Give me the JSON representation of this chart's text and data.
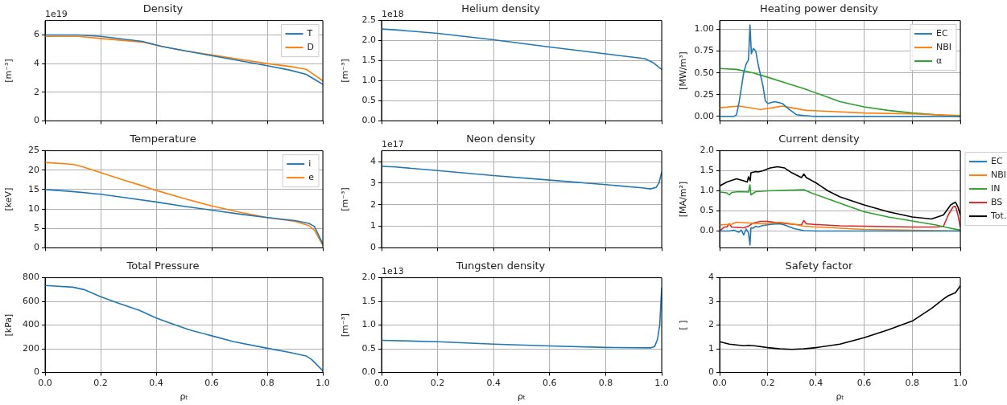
{
  "chart_data": [
    {
      "type": "line",
      "title": "Density",
      "ylabel": "[m⁻³]",
      "annotations": [
        "1e19"
      ],
      "xlim": [
        0,
        1
      ],
      "xticks": [
        {
          "value": 0,
          "label": null
        },
        {
          "value": 0.2,
          "label": null
        },
        {
          "value": 0.4,
          "label": null
        },
        {
          "value": 0.6,
          "label": null
        },
        {
          "value": 0.8,
          "label": null
        },
        {
          "value": 1,
          "label": null
        }
      ],
      "ylim": [
        0,
        7
      ],
      "yticks": [
        0,
        2,
        4,
        6
      ],
      "grid": true,
      "legend": "top right",
      "tick_labels": "y",
      "series": [
        {
          "name": "T",
          "color": "#1f77b4",
          "x": [
            0,
            0.12,
            0.2,
            0.35,
            0.42,
            0.5,
            0.6,
            0.7,
            0.8,
            0.88,
            0.94,
            0.97,
            1.0
          ],
          "values": [
            6.0,
            6.0,
            5.9,
            5.55,
            5.2,
            4.9,
            4.55,
            4.2,
            3.85,
            3.55,
            3.25,
            2.9,
            2.55
          ]
        },
        {
          "name": "D",
          "color": "#ff7f0e",
          "x": [
            0,
            0.12,
            0.2,
            0.35,
            0.42,
            0.5,
            0.6,
            0.7,
            0.8,
            0.88,
            0.94,
            0.97,
            1.0
          ],
          "values": [
            5.9,
            5.9,
            5.75,
            5.5,
            5.2,
            4.9,
            4.6,
            4.3,
            4.0,
            3.8,
            3.6,
            3.2,
            2.8
          ]
        }
      ]
    },
    {
      "type": "line",
      "title": "Helium density",
      "ylabel": "[m⁻³]",
      "annotations": [
        "1e18"
      ],
      "xlim": [
        0,
        1
      ],
      "xticks": [
        {
          "value": 0,
          "label": null
        },
        {
          "value": 0.2,
          "label": null
        },
        {
          "value": 0.4,
          "label": null
        },
        {
          "value": 0.6,
          "label": null
        },
        {
          "value": 0.8,
          "label": null
        },
        {
          "value": 1,
          "label": null
        }
      ],
      "ylim": [
        0,
        2.5
      ],
      "yticks": [
        {
          "value": 0,
          "label": "0.0"
        },
        0.5,
        {
          "value": 1,
          "label": "1.0"
        },
        1.5,
        {
          "value": 2,
          "label": "2.0"
        },
        2.5
      ],
      "grid": true,
      "tick_labels": "y",
      "series": [
        {
          "color": "#1f77b4",
          "x": [
            0,
            0.05,
            0.2,
            0.4,
            0.6,
            0.8,
            0.94,
            0.97,
            1.0
          ],
          "values": [
            2.29,
            2.27,
            2.18,
            2.02,
            1.84,
            1.67,
            1.55,
            1.45,
            1.28
          ]
        }
      ]
    },
    {
      "type": "line",
      "title": "Heating power density",
      "ylabel": "[MW/m³]",
      "xlim": [
        0,
        1
      ],
      "xticks": [
        {
          "value": 0,
          "label": null
        },
        {
          "value": 0.2,
          "label": null
        },
        {
          "value": 0.4,
          "label": null
        },
        {
          "value": 0.6,
          "label": null
        },
        {
          "value": 0.8,
          "label": null
        },
        {
          "value": 1,
          "label": null
        }
      ],
      "ylim": [
        -0.05,
        1.1
      ],
      "yticks": [
        {
          "value": 0,
          "label": "0.00"
        },
        {
          "value": 0.25,
          "label": "0.25"
        },
        {
          "value": 0.5,
          "label": "0.50"
        },
        {
          "value": 0.75,
          "label": "0.75"
        },
        {
          "value": 1,
          "label": "1.00"
        }
      ],
      "grid": true,
      "legend": "top right",
      "tick_labels": "y",
      "series": [
        {
          "name": "EC",
          "color": "#1f77b4",
          "x": [
            0,
            0.06,
            0.07,
            0.08,
            0.1,
            0.11,
            0.12,
            0.126,
            0.132,
            0.14,
            0.15,
            0.16,
            0.18,
            0.19,
            0.2,
            0.23,
            0.26,
            0.29,
            0.32,
            0.35,
            0.4,
            1.0
          ],
          "values": [
            0,
            0,
            0.02,
            0.15,
            0.5,
            0.6,
            0.65,
            1.05,
            0.72,
            0.78,
            0.75,
            0.6,
            0.35,
            0.18,
            0.15,
            0.17,
            0.15,
            0.08,
            0.02,
            0.01,
            0,
            0
          ]
        },
        {
          "name": "NBI",
          "color": "#ff7f0e",
          "x": [
            0,
            0.08,
            0.15,
            0.17,
            0.22,
            0.26,
            0.3,
            0.36,
            0.45,
            0.6,
            0.8,
            1.0
          ],
          "values": [
            0.1,
            0.12,
            0.09,
            0.08,
            0.1,
            0.12,
            0.1,
            0.07,
            0.06,
            0.04,
            0.03,
            0.01
          ]
        },
        {
          "name": "α",
          "color": "#2ca02c",
          "x": [
            0,
            0.07,
            0.14,
            0.2,
            0.28,
            0.35,
            0.42,
            0.5,
            0.6,
            0.7,
            0.8,
            0.9,
            1.0
          ],
          "values": [
            0.55,
            0.54,
            0.5,
            0.45,
            0.38,
            0.32,
            0.25,
            0.17,
            0.11,
            0.07,
            0.04,
            0.02,
            0
          ]
        }
      ]
    },
    {
      "type": "line",
      "title": "Temperature",
      "ylabel": "[keV]",
      "xlim": [
        0,
        1
      ],
      "xticks": [
        {
          "value": 0,
          "label": null
        },
        {
          "value": 0.2,
          "label": null
        },
        {
          "value": 0.4,
          "label": null
        },
        {
          "value": 0.6,
          "label": null
        },
        {
          "value": 0.8,
          "label": null
        },
        {
          "value": 1,
          "label": null
        }
      ],
      "ylim": [
        0,
        25
      ],
      "yticks": [
        0,
        5,
        10,
        15,
        20,
        25
      ],
      "grid": true,
      "legend": "top right",
      "tick_labels": "y",
      "series": [
        {
          "name": "i",
          "color": "#1f77b4",
          "x": [
            0,
            0.1,
            0.2,
            0.3,
            0.4,
            0.5,
            0.6,
            0.7,
            0.8,
            0.9,
            0.95,
            0.97,
            1.0
          ],
          "values": [
            15,
            14.5,
            13.8,
            12.8,
            11.8,
            10.7,
            9.7,
            8.7,
            7.8,
            7.0,
            6.3,
            5.5,
            1.0
          ]
        },
        {
          "name": "e",
          "color": "#ff7f0e",
          "x": [
            0,
            0.1,
            0.13,
            0.2,
            0.28,
            0.34,
            0.4,
            0.5,
            0.6,
            0.7,
            0.8,
            0.9,
            0.95,
            0.97,
            1.0
          ],
          "values": [
            22,
            21.5,
            21,
            19.4,
            17.5,
            16.2,
            14.8,
            12.7,
            10.8,
            9.2,
            7.8,
            6.8,
            5.7,
            4.5,
            0.7
          ]
        }
      ]
    },
    {
      "type": "line",
      "title": "Neon density",
      "ylabel": "[m⁻³]",
      "annotations": [
        "1e17"
      ],
      "xlim": [
        0,
        1
      ],
      "xticks": [
        {
          "value": 0,
          "label": null
        },
        {
          "value": 0.2,
          "label": null
        },
        {
          "value": 0.4,
          "label": null
        },
        {
          "value": 0.6,
          "label": null
        },
        {
          "value": 0.8,
          "label": null
        },
        {
          "value": 1,
          "label": null
        }
      ],
      "ylim": [
        0,
        4.5
      ],
      "yticks": [
        0,
        1,
        2,
        3,
        4
      ],
      "grid": true,
      "tick_labels": "y",
      "series": [
        {
          "color": "#1f77b4",
          "x": [
            0,
            0.05,
            0.2,
            0.4,
            0.6,
            0.8,
            0.93,
            0.96,
            0.98,
            0.99,
            1.0
          ],
          "values": [
            3.78,
            3.75,
            3.58,
            3.35,
            3.14,
            2.93,
            2.78,
            2.73,
            2.8,
            3.0,
            3.5
          ]
        }
      ]
    },
    {
      "type": "line",
      "title": "Current density",
      "ylabel": "[MA/m²]",
      "xlim": [
        0,
        1
      ],
      "xticks": [
        {
          "value": 0,
          "label": null
        },
        {
          "value": 0.2,
          "label": null
        },
        {
          "value": 0.4,
          "label": null
        },
        {
          "value": 0.6,
          "label": null
        },
        {
          "value": 0.8,
          "label": null
        },
        {
          "value": 1,
          "label": null
        }
      ],
      "ylim": [
        -0.42,
        2.0
      ],
      "yticks": [
        {
          "value": 0,
          "label": "0.0"
        },
        0.5,
        {
          "value": 1,
          "label": "1.0"
        },
        1.5,
        {
          "value": 2,
          "label": "2.0"
        }
      ],
      "grid": true,
      "legend": "right",
      "tick_labels": "y",
      "series": [
        {
          "name": "EC",
          "color": "#1f77b4",
          "x": [
            0,
            0.04,
            0.06,
            0.08,
            0.09,
            0.1,
            0.11,
            0.12,
            0.126,
            0.13,
            0.14,
            0.15,
            0.16,
            0.18,
            0.22,
            0.25,
            0.27,
            0.31,
            0.35,
            0.4,
            1.0
          ],
          "values": [
            0,
            0,
            0.02,
            -0.03,
            0.02,
            -0.1,
            0.05,
            -0.05,
            -0.35,
            0.08,
            0.07,
            0.12,
            0.1,
            0.14,
            0.17,
            0.18,
            0.15,
            0.06,
            0.01,
            0,
            0
          ]
        },
        {
          "name": "NBI",
          "color": "#ff7f0e",
          "x": [
            0,
            0.05,
            0.07,
            0.12,
            0.17,
            0.22,
            0.25,
            0.3,
            0.35,
            0.4,
            0.5,
            0.6,
            0.8,
            1.0
          ],
          "values": [
            0.15,
            0.17,
            0.22,
            0.2,
            0.18,
            0.2,
            0.22,
            0.18,
            0.12,
            0.1,
            0.07,
            0.04,
            0.02,
            0
          ]
        },
        {
          "name": "IN",
          "color": "#2ca02c",
          "x": [
            0,
            0.03,
            0.04,
            0.05,
            0.08,
            0.12,
            0.126,
            0.13,
            0.15,
            0.2,
            0.3,
            0.35,
            0.38,
            0.45,
            0.52,
            0.6,
            0.7,
            0.8,
            0.9,
            0.95,
            1.0
          ],
          "values": [
            0.97,
            0.95,
            0.9,
            0.96,
            0.98,
            0.97,
            1.15,
            0.9,
            0.98,
            1.0,
            1.02,
            1.03,
            0.95,
            0.8,
            0.65,
            0.48,
            0.35,
            0.25,
            0.15,
            0.08,
            0.02
          ]
        },
        {
          "name": "BS",
          "color": "#d62728",
          "x": [
            0,
            0.02,
            0.03,
            0.04,
            0.05,
            0.1,
            0.12,
            0.14,
            0.17,
            0.2,
            0.25,
            0.3,
            0.34,
            0.35,
            0.36,
            0.4,
            0.5,
            0.6,
            0.7,
            0.8,
            0.9,
            0.93,
            0.95,
            0.97,
            0.98,
            0.99,
            1.0
          ],
          "values": [
            0,
            0.1,
            0.1,
            0.18,
            0.1,
            0.08,
            0.12,
            0.2,
            0.24,
            0.24,
            0.2,
            0.17,
            0.15,
            0.26,
            0.18,
            0.16,
            0.13,
            0.12,
            0.11,
            0.1,
            0.1,
            0.12,
            0.4,
            0.6,
            0.62,
            0.4,
            0.1
          ]
        },
        {
          "name": "Tot.",
          "color": "#000000",
          "x": [
            0,
            0.03,
            0.07,
            0.1,
            0.115,
            0.12,
            0.127,
            0.13,
            0.15,
            0.16,
            0.18,
            0.21,
            0.24,
            0.27,
            0.3,
            0.34,
            0.35,
            0.36,
            0.4,
            0.45,
            0.5,
            0.6,
            0.7,
            0.8,
            0.88,
            0.93,
            0.96,
            0.98,
            0.99,
            1.0
          ],
          "values": [
            1.12,
            1.22,
            1.3,
            1.25,
            1.22,
            1.35,
            1.25,
            1.45,
            1.48,
            1.47,
            1.5,
            1.57,
            1.6,
            1.57,
            1.45,
            1.33,
            1.42,
            1.33,
            1.2,
            1.0,
            0.85,
            0.65,
            0.48,
            0.35,
            0.3,
            0.4,
            0.65,
            0.72,
            0.6,
            0.4
          ]
        }
      ]
    },
    {
      "type": "line",
      "title": "Total Pressure",
      "ylabel": "[kPa]",
      "xlabel": "ρₜ",
      "xlim": [
        0,
        1
      ],
      "xticks": [
        {
          "value": 0,
          "label": "0.0"
        },
        {
          "value": 0.2,
          "label": "0.2"
        },
        {
          "value": 0.4,
          "label": "0.4"
        },
        {
          "value": 0.6,
          "label": "0.6"
        },
        {
          "value": 0.8,
          "label": "0.8"
        },
        {
          "value": 1,
          "label": "1.0"
        }
      ],
      "ylim": [
        0,
        800
      ],
      "yticks": [
        0,
        200,
        400,
        600,
        800
      ],
      "grid": true,
      "series": [
        {
          "color": "#1f77b4",
          "x": [
            0,
            0.1,
            0.14,
            0.2,
            0.27,
            0.34,
            0.4,
            0.47,
            0.52,
            0.6,
            0.68,
            0.8,
            0.88,
            0.94,
            0.96,
            1.0
          ],
          "values": [
            735,
            720,
            700,
            640,
            580,
            525,
            460,
            400,
            360,
            310,
            260,
            205,
            170,
            140,
            110,
            15
          ]
        }
      ]
    },
    {
      "type": "line",
      "title": "Tungsten density",
      "ylabel": "[m⁻³]",
      "xlabel": "ρₜ",
      "annotations": [
        "1e13"
      ],
      "xlim": [
        0,
        1
      ],
      "xticks": [
        {
          "value": 0,
          "label": "0.0"
        },
        {
          "value": 0.2,
          "label": "0.2"
        },
        {
          "value": 0.4,
          "label": "0.4"
        },
        {
          "value": 0.6,
          "label": "0.6"
        },
        {
          "value": 0.8,
          "label": "0.8"
        },
        {
          "value": 1,
          "label": "1.0"
        }
      ],
      "ylim": [
        0,
        2.0
      ],
      "yticks": [
        {
          "value": 0,
          "label": "0.0"
        },
        0.5,
        {
          "value": 1,
          "label": "1.0"
        },
        1.5,
        {
          "value": 2,
          "label": "2.0"
        }
      ],
      "grid": true,
      "series": [
        {
          "color": "#1f77b4",
          "x": [
            0,
            0.2,
            0.4,
            0.6,
            0.8,
            0.96,
            0.975,
            0.985,
            0.993,
            1.0
          ],
          "values": [
            0.68,
            0.65,
            0.6,
            0.56,
            0.53,
            0.52,
            0.55,
            0.7,
            1.0,
            1.78
          ]
        }
      ]
    },
    {
      "type": "line",
      "title": "Safety factor",
      "ylabel": "[ ]",
      "xlabel": "ρₜ",
      "xlim": [
        0,
        1
      ],
      "xticks": [
        {
          "value": 0,
          "label": "0.0"
        },
        {
          "value": 0.2,
          "label": "0.2"
        },
        {
          "value": 0.4,
          "label": "0.4"
        },
        {
          "value": 0.6,
          "label": "0.6"
        },
        {
          "value": 0.8,
          "label": "0.8"
        },
        {
          "value": 1,
          "label": "1.0"
        }
      ],
      "ylim": [
        0,
        4
      ],
      "yticks": [
        0,
        1,
        2,
        3,
        4
      ],
      "grid": true,
      "series": [
        {
          "color": "#000000",
          "x": [
            0,
            0.04,
            0.1,
            0.12,
            0.15,
            0.2,
            0.25,
            0.3,
            0.35,
            0.4,
            0.5,
            0.6,
            0.7,
            0.8,
            0.88,
            0.93,
            0.95,
            0.98,
            1.0
          ],
          "values": [
            1.3,
            1.2,
            1.13,
            1.15,
            1.12,
            1.05,
            1.0,
            0.98,
            1.0,
            1.05,
            1.2,
            1.47,
            1.8,
            2.17,
            2.7,
            3.1,
            3.24,
            3.37,
            3.66
          ]
        }
      ]
    }
  ]
}
